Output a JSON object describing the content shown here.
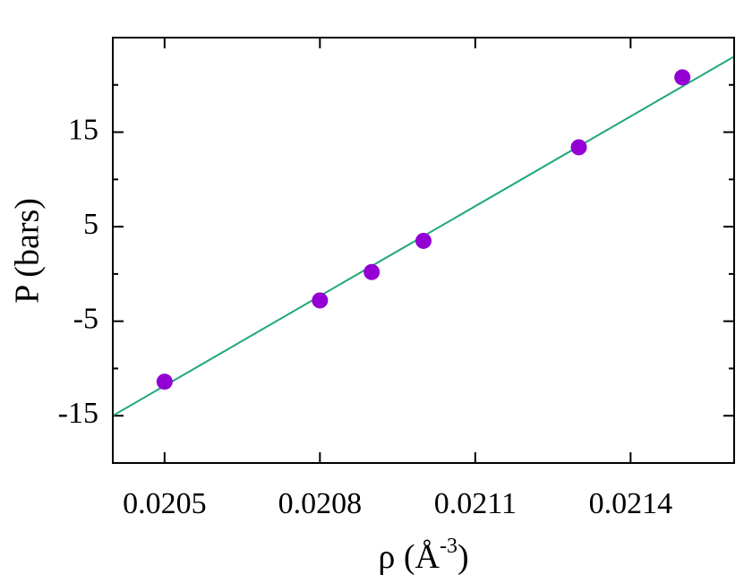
{
  "chart_data": {
    "type": "scatter",
    "xlabel": [
      "ρ (Å",
      "-3",
      ")"
    ],
    "ylabel": "P (bars)",
    "x": [
      0.0205,
      0.0208,
      0.0209,
      0.021,
      0.0213,
      0.0215
    ],
    "values": [
      -11.4,
      -2.8,
      0.2,
      3.5,
      13.4,
      20.8
    ],
    "color": "#9400d3",
    "fit": {
      "x": [
        0.0204,
        0.0216
      ],
      "values": [
        -15,
        23
      ],
      "color": "#1fa87a"
    },
    "xlim": [
      0.0204,
      0.0216
    ],
    "ylim": [
      -20,
      25
    ],
    "xticks": [
      0.0205,
      0.0208,
      0.0211,
      0.0214
    ],
    "yticks": [
      -15,
      -5,
      5,
      15
    ],
    "yminorticks": [
      -10,
      0,
      10,
      20
    ],
    "grid": false
  }
}
